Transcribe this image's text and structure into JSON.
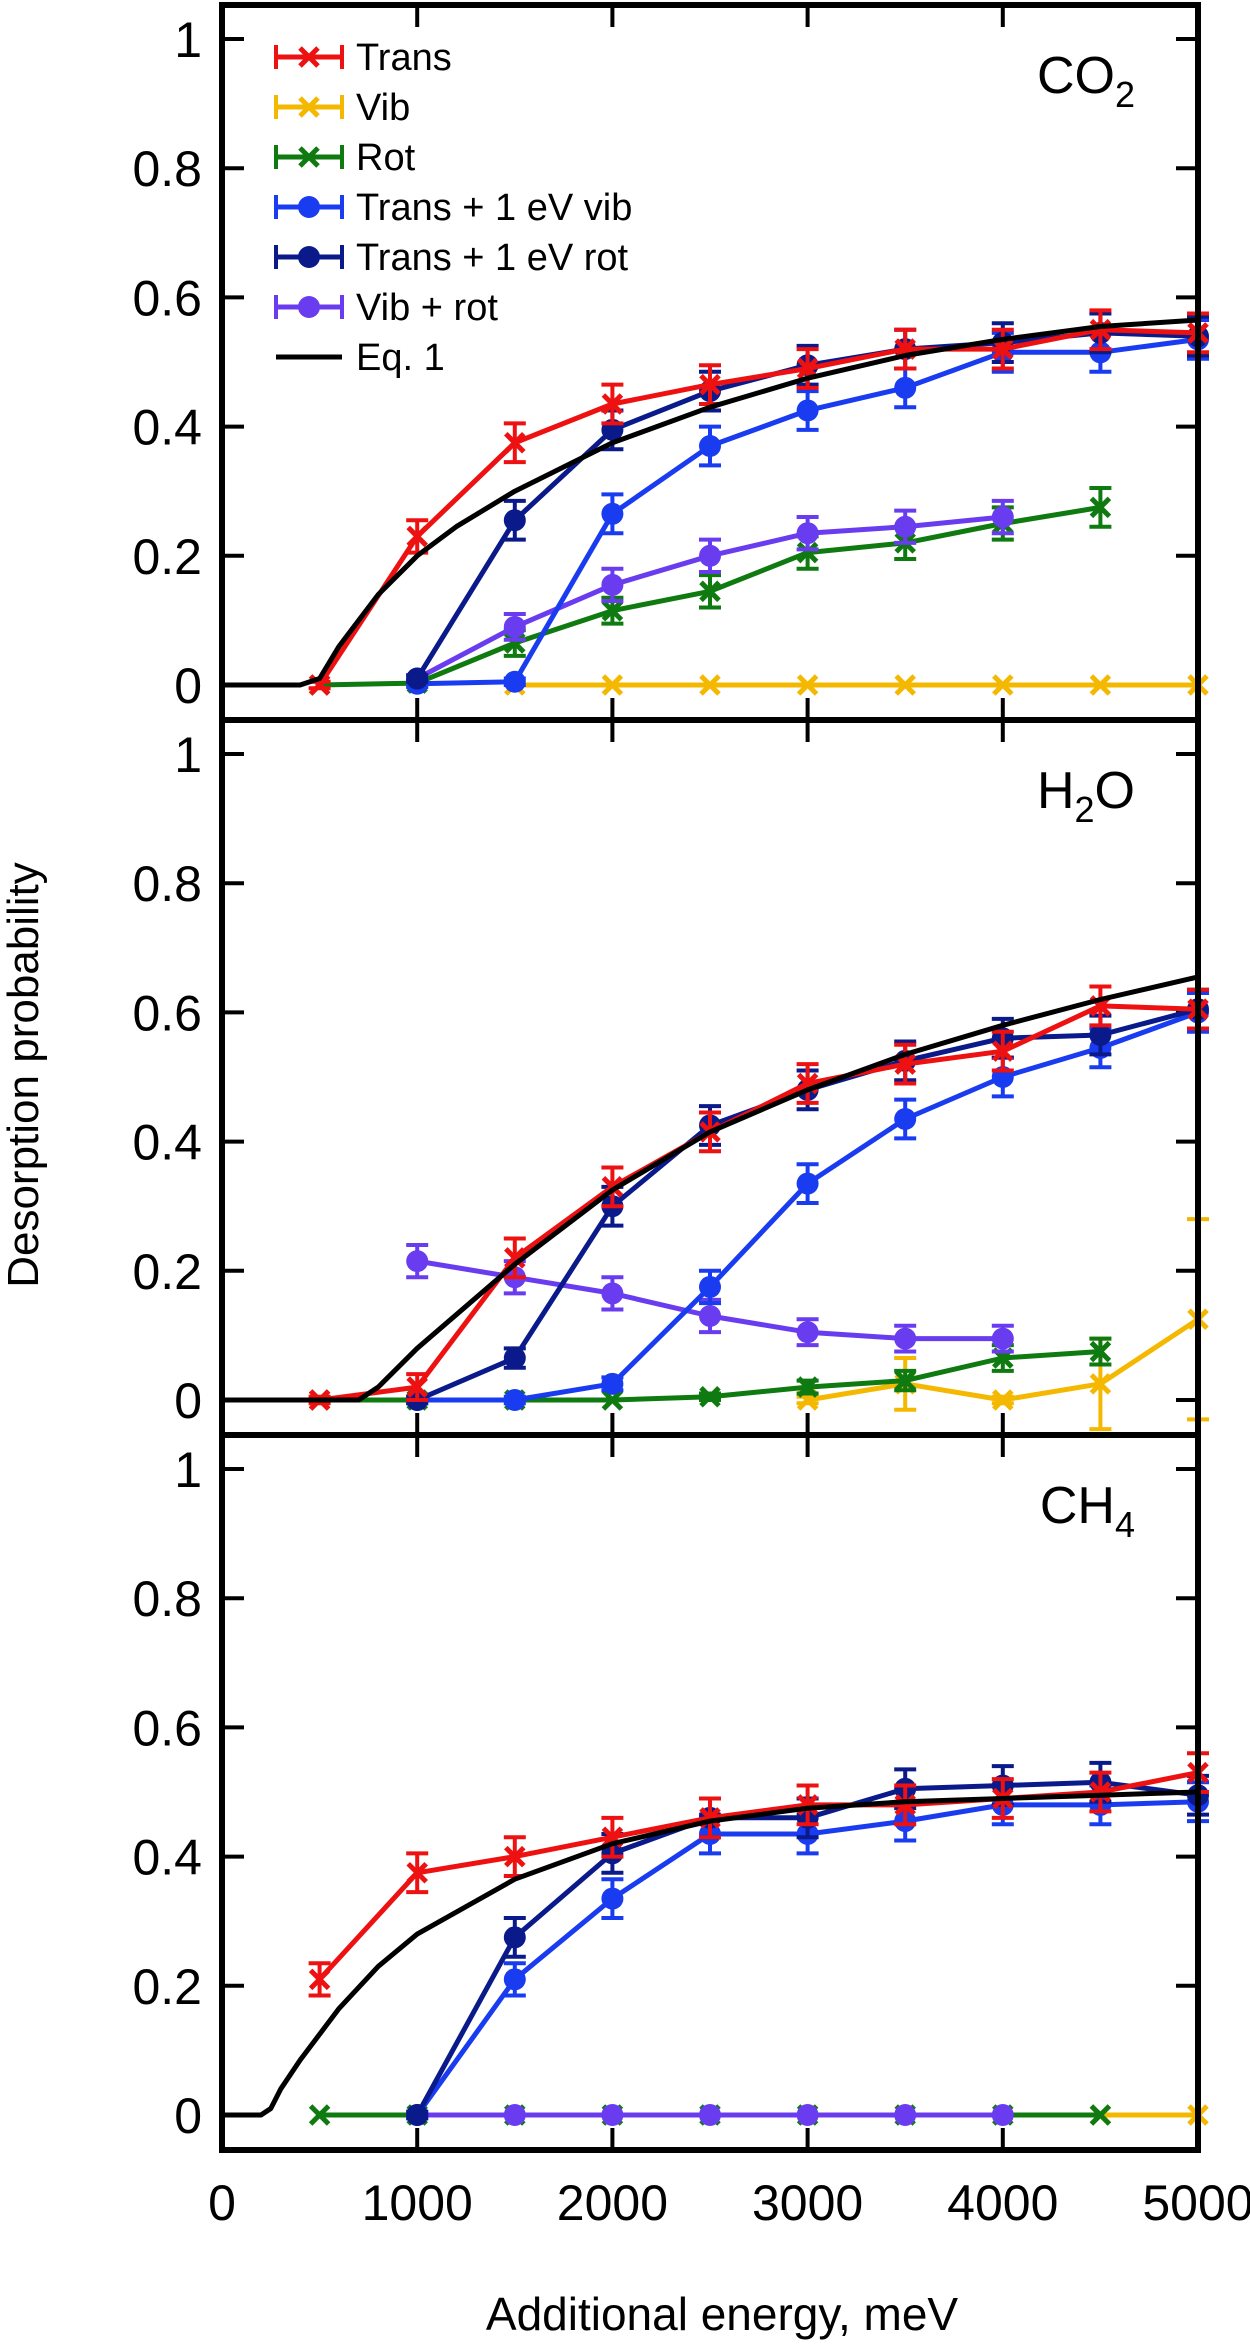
{
  "figure": {
    "ylabel": "Desorption probability",
    "xlabel": "Additional energy, meV",
    "legend": [
      {
        "label": "Trans",
        "key": "trans"
      },
      {
        "label": "Vib",
        "key": "vib"
      },
      {
        "label": "Rot",
        "key": "rot"
      },
      {
        "label": "Trans + 1 eV vib",
        "key": "transvib"
      },
      {
        "label": "Trans + 1 eV rot",
        "key": "transrot"
      },
      {
        "label": "Vib + rot",
        "key": "vibrot"
      },
      {
        "label": "Eq. 1",
        "key": "eq"
      }
    ]
  },
  "styles": {
    "trans": {
      "color": "#ee1111",
      "marker": "cross"
    },
    "vib": {
      "color": "#f5b800",
      "marker": "cross"
    },
    "rot": {
      "color": "#0e7a10",
      "marker": "cross"
    },
    "transvib": {
      "color": "#1a3cf0",
      "marker": "circle"
    },
    "transrot": {
      "color": "#0a1a8a",
      "marker": "circle"
    },
    "vibrot": {
      "color": "#6a3cf0",
      "marker": "circle"
    },
    "eq": {
      "color": "#000000",
      "marker": "none"
    }
  },
  "chart_data": [
    {
      "type": "line",
      "molecule": "CO2",
      "label_main": "CO",
      "label_sub": "2",
      "label_tail": "",
      "xlim": [
        0,
        5000
      ],
      "ylim": [
        0,
        1.05
      ],
      "yticks": [
        {
          "v": 0,
          "t": "0"
        },
        {
          "v": 0.2,
          "t": "0.2"
        },
        {
          "v": 0.4,
          "t": "0.4"
        },
        {
          "v": 0.6,
          "t": "0.6"
        },
        {
          "v": 0.8,
          "t": "0.8"
        },
        {
          "v": 1,
          "t": "1"
        }
      ],
      "series": [
        {
          "key": "trans",
          "name": "Trans",
          "x": [
            500,
            1000,
            1500,
            2000,
            2500,
            3000,
            3500,
            4000,
            4500,
            5000
          ],
          "y": [
            0.0,
            0.23,
            0.375,
            0.435,
            0.465,
            0.49,
            0.52,
            0.52,
            0.55,
            0.545
          ],
          "err": [
            0.005,
            0.025,
            0.03,
            0.03,
            0.03,
            0.03,
            0.03,
            0.03,
            0.03,
            0.03
          ]
        },
        {
          "key": "vib",
          "name": "Vib",
          "x": [
            1500,
            2000,
            2500,
            3000,
            3500,
            4000,
            4500,
            5000
          ],
          "y": [
            0,
            0,
            0,
            0,
            0,
            0,
            0,
            0
          ],
          "err": [
            0,
            0,
            0,
            0,
            0,
            0,
            0,
            0
          ]
        },
        {
          "key": "rot",
          "name": "Rot",
          "x": [
            500,
            1000,
            1500,
            2000,
            2500,
            3000,
            3500,
            4000,
            4500
          ],
          "y": [
            0,
            0.003,
            0.065,
            0.115,
            0.145,
            0.205,
            0.22,
            0.25,
            0.275
          ],
          "err": [
            0.003,
            0.005,
            0.02,
            0.02,
            0.025,
            0.025,
            0.025,
            0.025,
            0.03
          ]
        },
        {
          "key": "transvib",
          "name": "Trans + 1 eV vib",
          "x": [
            1000,
            1500,
            2000,
            2500,
            3000,
            3500,
            4000,
            4500,
            5000
          ],
          "y": [
            0.002,
            0.005,
            0.265,
            0.37,
            0.425,
            0.46,
            0.515,
            0.515,
            0.535
          ],
          "err": [
            0.005,
            0.005,
            0.03,
            0.03,
            0.03,
            0.03,
            0.03,
            0.03,
            0.03
          ]
        },
        {
          "key": "transrot",
          "name": "Trans + 1 eV rot",
          "x": [
            1000,
            1500,
            2000,
            2500,
            3000,
            3500,
            4000,
            4500,
            5000
          ],
          "y": [
            0.01,
            0.255,
            0.395,
            0.455,
            0.495,
            0.52,
            0.53,
            0.545,
            0.54
          ],
          "err": [
            0.005,
            0.03,
            0.03,
            0.03,
            0.03,
            0.03,
            0.03,
            0.03,
            0.03
          ]
        },
        {
          "key": "vibrot",
          "name": "Vib + rot",
          "x": [
            1000,
            1500,
            2000,
            2500,
            3000,
            3500,
            4000
          ],
          "y": [
            0.01,
            0.09,
            0.155,
            0.2,
            0.235,
            0.245,
            0.26
          ],
          "err": [
            0.005,
            0.02,
            0.025,
            0.025,
            0.025,
            0.025,
            0.025
          ]
        },
        {
          "key": "eq",
          "name": "Eq. 1",
          "x": [
            0,
            400,
            500,
            600,
            800,
            1000,
            1200,
            1500,
            2000,
            2500,
            3000,
            3500,
            4000,
            4500,
            5000
          ],
          "y": [
            0,
            0,
            0.01,
            0.06,
            0.14,
            0.2,
            0.245,
            0.3,
            0.375,
            0.43,
            0.475,
            0.51,
            0.535,
            0.555,
            0.565
          ],
          "err": []
        }
      ]
    },
    {
      "type": "line",
      "molecule": "H2O",
      "label_main": "H",
      "label_sub": "2",
      "label_tail": "O",
      "xlim": [
        0,
        5000
      ],
      "ylim": [
        0,
        1.05
      ],
      "yticks": [
        {
          "v": 0,
          "t": "0"
        },
        {
          "v": 0.2,
          "t": "0.2"
        },
        {
          "v": 0.4,
          "t": "0.4"
        },
        {
          "v": 0.6,
          "t": "0.6"
        },
        {
          "v": 0.8,
          "t": "0.8"
        },
        {
          "v": 1,
          "t": "1"
        }
      ],
      "series": [
        {
          "key": "trans",
          "name": "Trans",
          "x": [
            500,
            1000,
            1500,
            2000,
            2500,
            3000,
            3500,
            4000,
            4500,
            5000
          ],
          "y": [
            0,
            0.02,
            0.22,
            0.33,
            0.415,
            0.49,
            0.52,
            0.54,
            0.61,
            0.605
          ],
          "err": [
            0.005,
            0.02,
            0.03,
            0.03,
            0.03,
            0.03,
            0.03,
            0.03,
            0.03,
            0.03
          ]
        },
        {
          "key": "vib",
          "name": "Vib",
          "x": [
            3000,
            3500,
            4000,
            4500,
            5000
          ],
          "y": [
            0,
            0.025,
            0,
            0.025,
            0.125
          ],
          "err": [
            0.005,
            0.04,
            0.005,
            0.07,
            0.155
          ]
        },
        {
          "key": "rot",
          "name": "Rot",
          "x": [
            500,
            1000,
            1500,
            2000,
            2500,
            3000,
            3500,
            4000,
            4500
          ],
          "y": [
            0,
            0,
            0,
            0,
            0.005,
            0.02,
            0.03,
            0.065,
            0.075
          ],
          "err": [
            0.003,
            0.003,
            0.003,
            0.003,
            0.005,
            0.01,
            0.015,
            0.02,
            0.02
          ]
        },
        {
          "key": "transvib",
          "name": "Trans + 1 eV vib",
          "x": [
            1000,
            1500,
            2000,
            2500,
            3000,
            3500,
            4000,
            4500,
            5000
          ],
          "y": [
            0,
            0,
            0.025,
            0.175,
            0.335,
            0.435,
            0.5,
            0.545,
            0.6
          ],
          "err": [
            0.005,
            0.005,
            0.01,
            0.025,
            0.03,
            0.03,
            0.03,
            0.03,
            0.03
          ]
        },
        {
          "key": "transrot",
          "name": "Trans + 1 eV rot",
          "x": [
            1000,
            1500,
            2000,
            2500,
            3000,
            3500,
            4000,
            4500,
            5000
          ],
          "y": [
            0,
            0.065,
            0.3,
            0.425,
            0.48,
            0.525,
            0.56,
            0.565,
            0.605
          ],
          "err": [
            0.005,
            0.015,
            0.03,
            0.03,
            0.03,
            0.03,
            0.03,
            0.03,
            0.03
          ]
        },
        {
          "key": "vibrot",
          "name": "Vib + rot",
          "x": [
            1000,
            1500,
            2000,
            2500,
            3000,
            3500,
            4000
          ],
          "y": [
            0.215,
            0.19,
            0.165,
            0.13,
            0.105,
            0.095,
            0.095
          ],
          "err": [
            0.025,
            0.025,
            0.025,
            0.025,
            0.02,
            0.02,
            0.02
          ]
        },
        {
          "key": "eq",
          "name": "Eq. 1",
          "x": [
            0,
            700,
            800,
            1000,
            1500,
            2000,
            2500,
            3000,
            3500,
            4000,
            4500,
            5000
          ],
          "y": [
            0,
            0,
            0.02,
            0.08,
            0.21,
            0.325,
            0.415,
            0.48,
            0.535,
            0.58,
            0.62,
            0.655
          ],
          "err": []
        }
      ]
    },
    {
      "type": "line",
      "molecule": "CH4",
      "label_main": "CH",
      "label_sub": "4",
      "label_tail": "",
      "xlim": [
        0,
        5000
      ],
      "ylim": [
        0,
        1.05
      ],
      "xticks": [
        {
          "v": 0,
          "t": "0"
        },
        {
          "v": 1000,
          "t": "1000"
        },
        {
          "v": 2000,
          "t": "2000"
        },
        {
          "v": 3000,
          "t": "3000"
        },
        {
          "v": 4000,
          "t": "4000"
        },
        {
          "v": 5000,
          "t": "5000"
        }
      ],
      "yticks": [
        {
          "v": 0,
          "t": "0"
        },
        {
          "v": 0.2,
          "t": "0.2"
        },
        {
          "v": 0.4,
          "t": "0.4"
        },
        {
          "v": 0.6,
          "t": "0.6"
        },
        {
          "v": 0.8,
          "t": "0.8"
        },
        {
          "v": 1,
          "t": "1"
        }
      ],
      "series": [
        {
          "key": "trans",
          "name": "Trans",
          "x": [
            500,
            1000,
            1500,
            2000,
            2500,
            3000,
            3500,
            4000,
            4500,
            5000
          ],
          "y": [
            0.21,
            0.375,
            0.4,
            0.43,
            0.46,
            0.48,
            0.48,
            0.49,
            0.5,
            0.53
          ],
          "err": [
            0.025,
            0.03,
            0.03,
            0.03,
            0.03,
            0.03,
            0.03,
            0.03,
            0.03,
            0.03
          ]
        },
        {
          "key": "vib",
          "name": "Vib",
          "x": [
            4500,
            5000
          ],
          "y": [
            0,
            0
          ],
          "err": [
            0,
            0
          ]
        },
        {
          "key": "rot",
          "name": "Rot",
          "x": [
            500,
            1000,
            1500,
            2000,
            2500,
            3000,
            3500,
            4000,
            4500
          ],
          "y": [
            0,
            0,
            0,
            0,
            0,
            0,
            0,
            0,
            0
          ],
          "err": [
            0,
            0,
            0,
            0,
            0,
            0,
            0,
            0,
            0
          ]
        },
        {
          "key": "transvib",
          "name": "Trans + 1 eV vib",
          "x": [
            1000,
            1500,
            2000,
            2500,
            3000,
            3500,
            4000,
            4500,
            5000
          ],
          "y": [
            0,
            0.21,
            0.335,
            0.435,
            0.435,
            0.455,
            0.48,
            0.48,
            0.485
          ],
          "err": [
            0.005,
            0.025,
            0.03,
            0.03,
            0.03,
            0.03,
            0.03,
            0.03,
            0.03
          ]
        },
        {
          "key": "transrot",
          "name": "Trans + 1 eV rot",
          "x": [
            1000,
            1500,
            2000,
            2500,
            3000,
            3500,
            4000,
            4500,
            5000
          ],
          "y": [
            0,
            0.275,
            0.405,
            0.46,
            0.46,
            0.505,
            0.51,
            0.515,
            0.495
          ],
          "err": [
            0.005,
            0.03,
            0.03,
            0.03,
            0.03,
            0.03,
            0.03,
            0.03,
            0.03
          ]
        },
        {
          "key": "vibrot",
          "name": "Vib + rot",
          "x": [
            1000,
            1500,
            2000,
            2500,
            3000,
            3500,
            4000
          ],
          "y": [
            0,
            0,
            0,
            0,
            0,
            0,
            0
          ],
          "err": [
            0,
            0,
            0,
            0,
            0,
            0,
            0
          ]
        },
        {
          "key": "eq",
          "name": "Eq. 1",
          "x": [
            0,
            200,
            250,
            300,
            400,
            600,
            800,
            1000,
            1500,
            2000,
            2500,
            3000,
            3500,
            4000,
            4500,
            5000
          ],
          "y": [
            0,
            0,
            0.01,
            0.04,
            0.085,
            0.165,
            0.23,
            0.28,
            0.365,
            0.42,
            0.455,
            0.475,
            0.485,
            0.49,
            0.495,
            0.5
          ],
          "err": []
        }
      ]
    }
  ]
}
